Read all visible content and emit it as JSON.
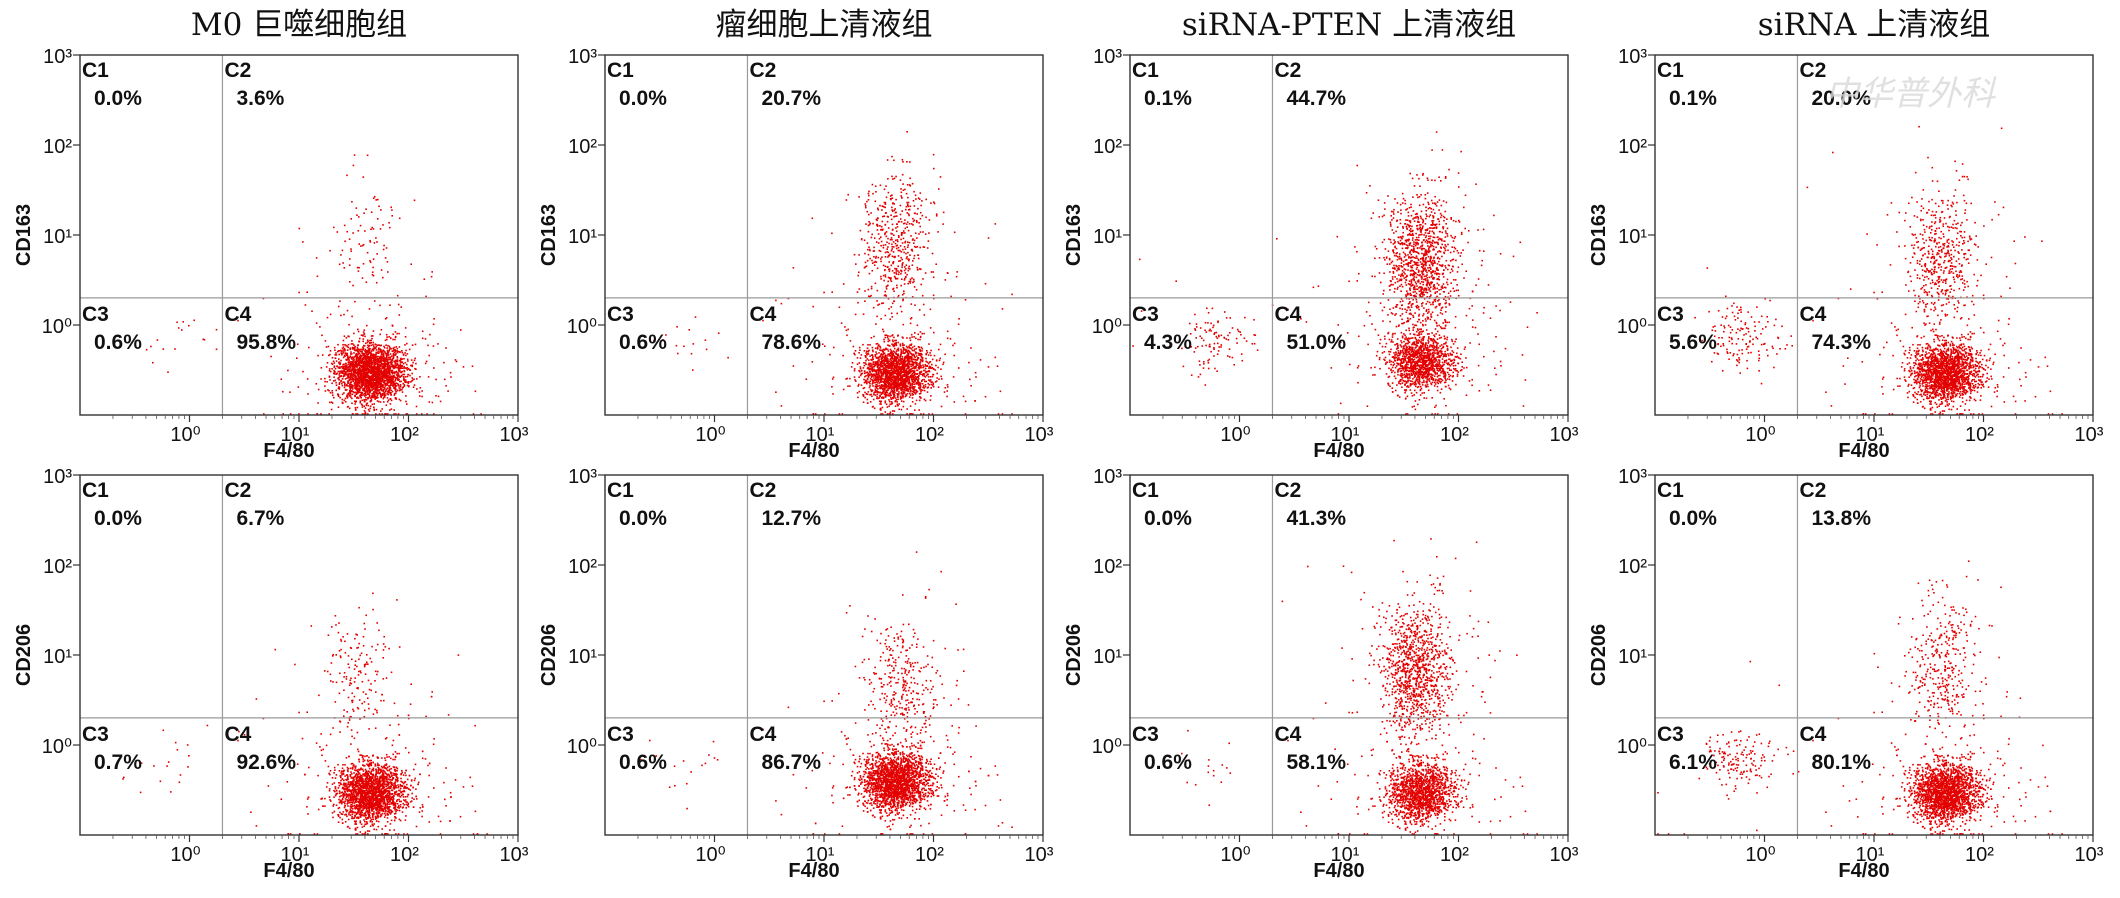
{
  "watermark": "中华普外科",
  "chart_data": [
    {
      "type": "scatter",
      "title": "M0 巨噬细胞组",
      "xlabel": "F4/80",
      "ylabel": "CD163",
      "xscale": "log",
      "yscale": "log",
      "xlim": [
        0.1,
        1000
      ],
      "ylim": [
        0.1,
        1000
      ],
      "xticks": [
        "10⁰",
        "10¹",
        "10²",
        "10³"
      ],
      "yticks": [
        "10⁰",
        "10¹",
        "10²",
        "10³"
      ],
      "gate": {
        "x": 2,
        "y": 2
      },
      "quadrants": [
        {
          "name": "C1",
          "percent": "0.0%"
        },
        {
          "name": "C2",
          "percent": "3.6%"
        },
        {
          "name": "C3",
          "percent": "0.6%"
        },
        {
          "name": "C4",
          "percent": "95.8%"
        }
      ],
      "clusters": [
        {
          "x": 45,
          "y": 0.3,
          "share": 95.8
        },
        {
          "x": 40,
          "y": 8,
          "share": 3.6
        },
        {
          "x": 0.6,
          "y": 0.6,
          "share": 0.6
        }
      ]
    },
    {
      "type": "scatter",
      "title": "瘤细胞上清液组",
      "xlabel": "F4/80",
      "ylabel": "CD163",
      "xscale": "log",
      "yscale": "log",
      "xlim": [
        0.1,
        1000
      ],
      "ylim": [
        0.1,
        1000
      ],
      "xticks": [
        "10⁰",
        "10¹",
        "10²",
        "10³"
      ],
      "yticks": [
        "10⁰",
        "10¹",
        "10²",
        "10³"
      ],
      "gate": {
        "x": 2,
        "y": 2
      },
      "quadrants": [
        {
          "name": "C1",
          "percent": "0.0%"
        },
        {
          "name": "C2",
          "percent": "20.7%"
        },
        {
          "name": "C3",
          "percent": "0.6%"
        },
        {
          "name": "C4",
          "percent": "78.6%"
        }
      ],
      "clusters": [
        {
          "x": 45,
          "y": 0.3,
          "share": 78.6
        },
        {
          "x": 45,
          "y": 8,
          "share": 20.7
        },
        {
          "x": 0.6,
          "y": 0.6,
          "share": 0.6
        }
      ]
    },
    {
      "type": "scatter",
      "title": "siRNA-PTEN 上清液组",
      "xlabel": "F4/80",
      "ylabel": "CD163",
      "xscale": "log",
      "yscale": "log",
      "xlim": [
        0.1,
        1000
      ],
      "ylim": [
        0.1,
        1000
      ],
      "xticks": [
        "10⁰",
        "10¹",
        "10²",
        "10³"
      ],
      "yticks": [
        "10⁰",
        "10¹",
        "10²",
        "10³"
      ],
      "gate": {
        "x": 2,
        "y": 2
      },
      "quadrants": [
        {
          "name": "C1",
          "percent": "0.1%"
        },
        {
          "name": "C2",
          "percent": "44.7%"
        },
        {
          "name": "C3",
          "percent": "4.3%"
        },
        {
          "name": "C4",
          "percent": "51.0%"
        }
      ],
      "clusters": [
        {
          "x": 45,
          "y": 0.4,
          "share": 51.0
        },
        {
          "x": 45,
          "y": 5,
          "share": 44.7
        },
        {
          "x": 0.6,
          "y": 0.7,
          "share": 4.3
        }
      ]
    },
    {
      "type": "scatter",
      "title": "siRNA 上清液组",
      "xlabel": "F4/80",
      "ylabel": "CD163",
      "xscale": "log",
      "yscale": "log",
      "xlim": [
        0.1,
        1000
      ],
      "ylim": [
        0.1,
        1000
      ],
      "xticks": [
        "10⁰",
        "10¹",
        "10²",
        "10³"
      ],
      "yticks": [
        "10⁰",
        "10¹",
        "10²",
        "10³"
      ],
      "gate": {
        "x": 2,
        "y": 2
      },
      "quadrants": [
        {
          "name": "C1",
          "percent": "0.1%"
        },
        {
          "name": "C2",
          "percent": "20.0%"
        },
        {
          "name": "C3",
          "percent": "5.6%"
        },
        {
          "name": "C4",
          "percent": "74.3%"
        }
      ],
      "clusters": [
        {
          "x": 45,
          "y": 0.3,
          "share": 74.3
        },
        {
          "x": 40,
          "y": 6,
          "share": 20.0
        },
        {
          "x": 0.6,
          "y": 0.7,
          "share": 5.6
        }
      ]
    },
    {
      "type": "scatter",
      "title": "",
      "xlabel": "F4/80",
      "ylabel": "CD206",
      "xscale": "log",
      "yscale": "log",
      "xlim": [
        0.1,
        1000
      ],
      "ylim": [
        0.1,
        1000
      ],
      "xticks": [
        "10⁰",
        "10¹",
        "10²",
        "10³"
      ],
      "yticks": [
        "10⁰",
        "10¹",
        "10²",
        "10³"
      ],
      "gate": {
        "x": 2,
        "y": 2
      },
      "quadrants": [
        {
          "name": "C1",
          "percent": "0.0%"
        },
        {
          "name": "C2",
          "percent": "6.7%"
        },
        {
          "name": "C3",
          "percent": "0.7%"
        },
        {
          "name": "C4",
          "percent": "92.6%"
        }
      ],
      "clusters": [
        {
          "x": 45,
          "y": 0.3,
          "share": 92.6
        },
        {
          "x": 35,
          "y": 6,
          "share": 6.7
        },
        {
          "x": 0.6,
          "y": 0.6,
          "share": 0.7
        }
      ]
    },
    {
      "type": "scatter",
      "title": "",
      "xlabel": "F4/80",
      "ylabel": "CD206",
      "xscale": "log",
      "yscale": "log",
      "xlim": [
        0.1,
        1000
      ],
      "ylim": [
        0.1,
        1000
      ],
      "xticks": [
        "10⁰",
        "10¹",
        "10²",
        "10³"
      ],
      "yticks": [
        "10⁰",
        "10¹",
        "10²",
        "10³"
      ],
      "gate": {
        "x": 2,
        "y": 2
      },
      "quadrants": [
        {
          "name": "C1",
          "percent": "0.0%"
        },
        {
          "name": "C2",
          "percent": "12.7%"
        },
        {
          "name": "C3",
          "percent": "0.6%"
        },
        {
          "name": "C4",
          "percent": "86.7%"
        }
      ],
      "clusters": [
        {
          "x": 45,
          "y": 0.4,
          "share": 86.7
        },
        {
          "x": 50,
          "y": 5,
          "share": 12.7
        },
        {
          "x": 0.6,
          "y": 0.6,
          "share": 0.6
        }
      ]
    },
    {
      "type": "scatter",
      "title": "",
      "xlabel": "F4/80",
      "ylabel": "CD206",
      "xscale": "log",
      "yscale": "log",
      "xlim": [
        0.1,
        1000
      ],
      "ylim": [
        0.1,
        1000
      ],
      "xticks": [
        "10⁰",
        "10¹",
        "10²",
        "10³"
      ],
      "yticks": [
        "10⁰",
        "10¹",
        "10²",
        "10³"
      ],
      "gate": {
        "x": 2,
        "y": 2
      },
      "quadrants": [
        {
          "name": "C1",
          "percent": "0.0%"
        },
        {
          "name": "C2",
          "percent": "41.3%"
        },
        {
          "name": "C3",
          "percent": "0.6%"
        },
        {
          "name": "C4",
          "percent": "58.1%"
        }
      ],
      "clusters": [
        {
          "x": 45,
          "y": 0.3,
          "share": 58.1
        },
        {
          "x": 40,
          "y": 7,
          "share": 41.3
        },
        {
          "x": 0.6,
          "y": 0.6,
          "share": 0.6
        }
      ]
    },
    {
      "type": "scatter",
      "title": "",
      "xlabel": "F4/80",
      "ylabel": "CD206",
      "xscale": "log",
      "yscale": "log",
      "xlim": [
        0.1,
        1000
      ],
      "ylim": [
        0.1,
        1000
      ],
      "xticks": [
        "10⁰",
        "10¹",
        "10²",
        "10³"
      ],
      "yticks": [
        "10⁰",
        "10¹",
        "10²",
        "10³"
      ],
      "gate": {
        "x": 2,
        "y": 2
      },
      "quadrants": [
        {
          "name": "C1",
          "percent": "0.0%"
        },
        {
          "name": "C2",
          "percent": "13.8%"
        },
        {
          "name": "C3",
          "percent": "6.1%"
        },
        {
          "name": "C4",
          "percent": "80.1%"
        }
      ],
      "clusters": [
        {
          "x": 45,
          "y": 0.3,
          "share": 80.1
        },
        {
          "x": 40,
          "y": 7,
          "share": 13.8
        },
        {
          "x": 0.6,
          "y": 0.7,
          "share": 6.1
        }
      ]
    }
  ],
  "colors": {
    "events": "#e30000",
    "gate": "#9a9a9a",
    "frame": "#333333",
    "watermark": "#d9d9d9"
  }
}
